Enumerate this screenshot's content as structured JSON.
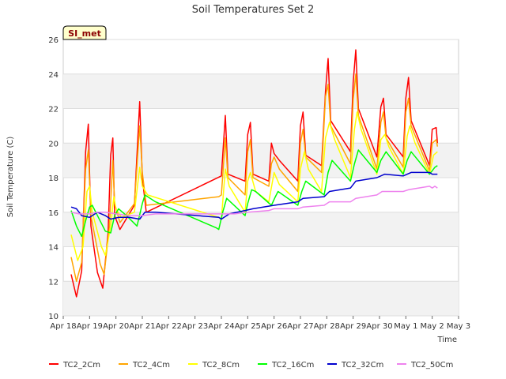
{
  "chart_data": {
    "type": "line",
    "title": "Soil Temperatures Set 2",
    "xlabel": "Time",
    "ylabel": "Soil Temperature (C)",
    "station_tag": "SI_met",
    "ylim": [
      10,
      26
    ],
    "yticks": [
      10,
      12,
      14,
      16,
      18,
      20,
      22,
      24,
      26
    ],
    "xlim": [
      0,
      15
    ],
    "xticks": [
      {
        "x": 0,
        "label": "Apr 18"
      },
      {
        "x": 1,
        "label": "Apr 19"
      },
      {
        "x": 2,
        "label": "Apr 20"
      },
      {
        "x": 3,
        "label": "Apr 21"
      },
      {
        "x": 4,
        "label": "Apr 22"
      },
      {
        "x": 5,
        "label": "Apr 23"
      },
      {
        "x": 6,
        "label": "Apr 24"
      },
      {
        "x": 7,
        "label": "Apr 25"
      },
      {
        "x": 8,
        "label": "Apr 26"
      },
      {
        "x": 9,
        "label": "Apr 27"
      },
      {
        "x": 10,
        "label": "Apr 28"
      },
      {
        "x": 11,
        "label": "Apr 29"
      },
      {
        "x": 12,
        "label": "Apr 30"
      },
      {
        "x": 13,
        "label": "May 1"
      },
      {
        "x": 14,
        "label": "May 2"
      },
      {
        "x": 15,
        "label": "May 3"
      }
    ],
    "grid": true,
    "legend_position": "bottom",
    "series": [
      {
        "name": "TC2_2Cm",
        "color": "#ff0000",
        "points": [
          [
            0.3,
            12.4
          ],
          [
            0.5,
            11.1
          ],
          [
            0.7,
            12.6
          ],
          [
            0.85,
            19.5
          ],
          [
            0.95,
            21.1
          ],
          [
            1.05,
            15.2
          ],
          [
            1.3,
            12.5
          ],
          [
            1.5,
            11.6
          ],
          [
            1.7,
            14.8
          ],
          [
            1.8,
            19.3
          ],
          [
            1.88,
            20.3
          ],
          [
            1.95,
            15.8
          ],
          [
            2.15,
            15.0
          ],
          [
            2.7,
            16.4
          ],
          [
            2.9,
            22.4
          ],
          [
            3.0,
            18.0
          ],
          [
            3.15,
            16.0
          ],
          [
            6.0,
            18.1
          ],
          [
            6.15,
            21.6
          ],
          [
            6.25,
            18.2
          ],
          [
            6.9,
            17.8
          ],
          [
            7.0,
            20.5
          ],
          [
            7.1,
            21.2
          ],
          [
            7.2,
            18.2
          ],
          [
            7.8,
            17.8
          ],
          [
            7.9,
            20.0
          ],
          [
            8.0,
            19.4
          ],
          [
            8.2,
            19.0
          ],
          [
            8.9,
            17.8
          ],
          [
            9.0,
            21.0
          ],
          [
            9.1,
            21.8
          ],
          [
            9.2,
            19.3
          ],
          [
            9.8,
            18.7
          ],
          [
            9.95,
            23.0
          ],
          [
            10.05,
            24.9
          ],
          [
            10.15,
            21.3
          ],
          [
            10.9,
            19.5
          ],
          [
            11.0,
            23.5
          ],
          [
            11.1,
            25.4
          ],
          [
            11.2,
            22.0
          ],
          [
            11.9,
            19.2
          ],
          [
            12.05,
            22.1
          ],
          [
            12.15,
            22.6
          ],
          [
            12.25,
            20.5
          ],
          [
            12.9,
            19.2
          ],
          [
            13.0,
            22.6
          ],
          [
            13.1,
            23.8
          ],
          [
            13.2,
            21.3
          ],
          [
            13.9,
            18.7
          ],
          [
            14.0,
            20.8
          ],
          [
            14.15,
            20.9
          ],
          [
            14.2,
            20.0
          ]
        ]
      },
      {
        "name": "TC2_4Cm",
        "color": "#ffa500",
        "points": [
          [
            0.3,
            13.4
          ],
          [
            0.5,
            12.0
          ],
          [
            0.7,
            13.1
          ],
          [
            0.85,
            18.5
          ],
          [
            0.95,
            19.6
          ],
          [
            1.05,
            15.8
          ],
          [
            1.4,
            13.0
          ],
          [
            1.55,
            12.4
          ],
          [
            1.75,
            15.1
          ],
          [
            1.88,
            19.0
          ],
          [
            1.95,
            16.5
          ],
          [
            2.15,
            15.4
          ],
          [
            2.7,
            16.5
          ],
          [
            2.9,
            21.0
          ],
          [
            3.0,
            18.3
          ],
          [
            3.15,
            16.4
          ],
          [
            5.9,
            16.9
          ],
          [
            6.0,
            17.0
          ],
          [
            6.15,
            20.3
          ],
          [
            6.25,
            18.0
          ],
          [
            6.9,
            17.0
          ],
          [
            7.0,
            19.5
          ],
          [
            7.1,
            20.2
          ],
          [
            7.2,
            18.0
          ],
          [
            7.8,
            17.5
          ],
          [
            7.9,
            18.8
          ],
          [
            8.0,
            19.2
          ],
          [
            8.2,
            18.5
          ],
          [
            8.9,
            17.2
          ],
          [
            9.0,
            20.0
          ],
          [
            9.1,
            20.8
          ],
          [
            9.2,
            19.2
          ],
          [
            9.8,
            18.3
          ],
          [
            9.95,
            22.7
          ],
          [
            10.05,
            23.4
          ],
          [
            10.15,
            21.0
          ],
          [
            10.9,
            18.8
          ],
          [
            11.0,
            22.5
          ],
          [
            11.1,
            24.0
          ],
          [
            11.2,
            21.6
          ],
          [
            11.9,
            18.5
          ],
          [
            12.05,
            21.2
          ],
          [
            12.15,
            21.8
          ],
          [
            12.25,
            20.3
          ],
          [
            12.9,
            18.6
          ],
          [
            13.0,
            21.8
          ],
          [
            13.1,
            22.6
          ],
          [
            13.2,
            21.0
          ],
          [
            13.9,
            18.4
          ],
          [
            14.0,
            20.0
          ],
          [
            14.15,
            20.2
          ],
          [
            14.2,
            19.8
          ]
        ]
      },
      {
        "name": "TC2_8Cm",
        "color": "#ffff00",
        "points": [
          [
            0.3,
            14.7
          ],
          [
            0.55,
            13.2
          ],
          [
            0.75,
            14.0
          ],
          [
            0.9,
            17.2
          ],
          [
            1.0,
            17.5
          ],
          [
            1.1,
            16.0
          ],
          [
            1.45,
            14.0
          ],
          [
            1.6,
            13.5
          ],
          [
            1.8,
            15.2
          ],
          [
            1.92,
            16.9
          ],
          [
            2.0,
            16.2
          ],
          [
            2.2,
            15.7
          ],
          [
            2.7,
            16.0
          ],
          [
            2.9,
            18.6
          ],
          [
            3.0,
            17.5
          ],
          [
            3.2,
            17.0
          ],
          [
            5.9,
            15.7
          ],
          [
            6.0,
            15.6
          ],
          [
            6.15,
            18.5
          ],
          [
            6.3,
            17.5
          ],
          [
            6.9,
            16.0
          ],
          [
            7.0,
            17.8
          ],
          [
            7.1,
            18.3
          ],
          [
            7.3,
            17.2
          ],
          [
            7.8,
            16.6
          ],
          [
            8.0,
            18.3
          ],
          [
            8.2,
            17.6
          ],
          [
            8.9,
            16.6
          ],
          [
            9.0,
            18.5
          ],
          [
            9.15,
            19.5
          ],
          [
            9.3,
            18.5
          ],
          [
            9.8,
            17.2
          ],
          [
            9.95,
            20.3
          ],
          [
            10.1,
            21.2
          ],
          [
            10.3,
            20.2
          ],
          [
            10.9,
            18.0
          ],
          [
            11.05,
            20.8
          ],
          [
            11.15,
            21.8
          ],
          [
            11.3,
            20.8
          ],
          [
            11.9,
            18.2
          ],
          [
            12.05,
            20.2
          ],
          [
            12.2,
            20.5
          ],
          [
            12.35,
            19.8
          ],
          [
            12.9,
            18.2
          ],
          [
            13.05,
            20.4
          ],
          [
            13.15,
            21.0
          ],
          [
            13.35,
            20.0
          ],
          [
            13.9,
            18.2
          ],
          [
            14.05,
            19.3
          ],
          [
            14.2,
            19.5
          ]
        ]
      },
      {
        "name": "TC2_16Cm",
        "color": "#00ff00",
        "points": [
          [
            0.3,
            16.1
          ],
          [
            0.5,
            15.2
          ],
          [
            0.7,
            14.6
          ],
          [
            0.85,
            15.5
          ],
          [
            1.0,
            16.3
          ],
          [
            1.1,
            16.4
          ],
          [
            1.3,
            15.8
          ],
          [
            1.6,
            14.9
          ],
          [
            1.8,
            14.8
          ],
          [
            1.95,
            15.8
          ],
          [
            2.1,
            16.2
          ],
          [
            2.4,
            15.8
          ],
          [
            2.8,
            15.2
          ],
          [
            3.0,
            16.5
          ],
          [
            3.1,
            17.0
          ],
          [
            3.5,
            16.6
          ],
          [
            5.8,
            15.1
          ],
          [
            5.9,
            15.0
          ],
          [
            6.05,
            16.0
          ],
          [
            6.2,
            16.8
          ],
          [
            6.9,
            15.8
          ],
          [
            7.0,
            16.5
          ],
          [
            7.15,
            17.3
          ],
          [
            7.3,
            17.2
          ],
          [
            7.9,
            16.4
          ],
          [
            8.05,
            16.9
          ],
          [
            8.15,
            17.2
          ],
          [
            8.9,
            16.4
          ],
          [
            9.05,
            17.2
          ],
          [
            9.2,
            17.8
          ],
          [
            9.9,
            17.0
          ],
          [
            10.05,
            18.3
          ],
          [
            10.2,
            19.0
          ],
          [
            10.9,
            17.8
          ],
          [
            11.05,
            18.8
          ],
          [
            11.2,
            19.6
          ],
          [
            11.9,
            18.3
          ],
          [
            12.05,
            19.0
          ],
          [
            12.25,
            19.5
          ],
          [
            12.9,
            18.2
          ],
          [
            13.05,
            19.0
          ],
          [
            13.2,
            19.5
          ],
          [
            13.9,
            18.2
          ],
          [
            14.1,
            18.6
          ],
          [
            14.2,
            18.7
          ]
        ]
      },
      {
        "name": "TC2_32Cm",
        "color": "#0000cd",
        "points": [
          [
            0.3,
            16.3
          ],
          [
            0.5,
            16.2
          ],
          [
            0.7,
            15.8
          ],
          [
            1.0,
            15.7
          ],
          [
            1.3,
            16.0
          ],
          [
            1.6,
            15.8
          ],
          [
            1.8,
            15.6
          ],
          [
            2.1,
            15.7
          ],
          [
            2.5,
            15.7
          ],
          [
            2.9,
            15.6
          ],
          [
            3.1,
            16.0
          ],
          [
            3.5,
            16.0
          ],
          [
            5.9,
            15.7
          ],
          [
            6.0,
            15.6
          ],
          [
            6.3,
            15.9
          ],
          [
            6.9,
            16.1
          ],
          [
            7.2,
            16.2
          ],
          [
            8.0,
            16.4
          ],
          [
            8.9,
            16.6
          ],
          [
            9.1,
            16.8
          ],
          [
            9.9,
            16.9
          ],
          [
            10.1,
            17.2
          ],
          [
            10.9,
            17.4
          ],
          [
            11.1,
            17.8
          ],
          [
            11.9,
            18.0
          ],
          [
            12.2,
            18.2
          ],
          [
            12.9,
            18.1
          ],
          [
            13.2,
            18.3
          ],
          [
            13.9,
            18.3
          ],
          [
            14.0,
            18.2
          ],
          [
            14.2,
            18.2
          ]
        ]
      },
      {
        "name": "TC2_50Cm",
        "color": "#ee82ee",
        "points": [
          [
            0.3,
            16.0
          ],
          [
            0.6,
            15.9
          ],
          [
            1.0,
            15.9
          ],
          [
            1.3,
            16.0
          ],
          [
            1.6,
            16.0
          ],
          [
            2.0,
            15.9
          ],
          [
            2.5,
            15.8
          ],
          [
            3.0,
            15.8
          ],
          [
            3.5,
            15.9
          ],
          [
            5.9,
            15.9
          ],
          [
            6.1,
            15.9
          ],
          [
            6.5,
            15.9
          ],
          [
            7.0,
            16.0
          ],
          [
            7.8,
            16.1
          ],
          [
            8.0,
            16.2
          ],
          [
            8.9,
            16.2
          ],
          [
            9.1,
            16.3
          ],
          [
            9.9,
            16.4
          ],
          [
            10.1,
            16.6
          ],
          [
            10.9,
            16.6
          ],
          [
            11.1,
            16.8
          ],
          [
            11.9,
            17.0
          ],
          [
            12.1,
            17.2
          ],
          [
            12.9,
            17.2
          ],
          [
            13.1,
            17.3
          ],
          [
            13.9,
            17.5
          ],
          [
            14.0,
            17.4
          ],
          [
            14.1,
            17.5
          ],
          [
            14.2,
            17.4
          ]
        ]
      }
    ]
  }
}
